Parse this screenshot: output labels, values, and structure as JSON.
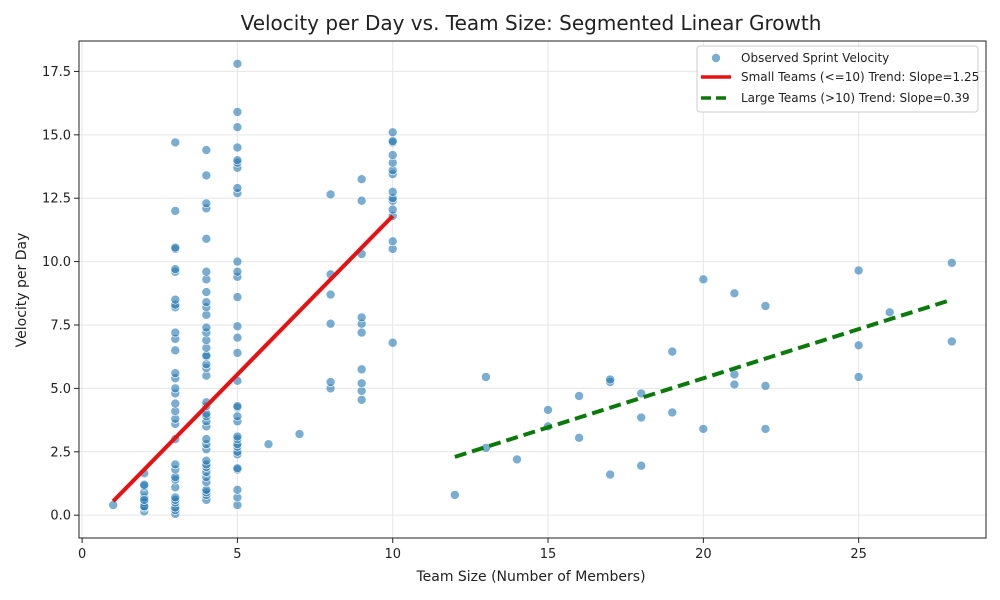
{
  "chart_data": {
    "type": "scatter",
    "title": "Velocity per Day vs. Team Size: Segmented Linear Growth",
    "xlabel": "Team Size (Number of Members)",
    "ylabel": "Velocity per Day",
    "xlim": [
      -0.1,
      29.1
    ],
    "ylim": [
      -0.9,
      18.7
    ],
    "xticks": [
      0,
      5,
      10,
      15,
      20,
      25
    ],
    "yticks": [
      0.0,
      2.5,
      5.0,
      7.5,
      10.0,
      12.5,
      15.0,
      17.5
    ],
    "xtick_labels": [
      "0",
      "5",
      "10",
      "15",
      "20",
      "25"
    ],
    "ytick_labels": [
      "0.0",
      "2.5",
      "5.0",
      "7.5",
      "10.0",
      "12.5",
      "15.0",
      "17.5"
    ],
    "grid": true,
    "legend_position": "top-right",
    "colors": {
      "points": "#1f77b4",
      "small_trend": "#e81010",
      "large_trend": "#0a7a0a"
    },
    "series": [
      {
        "name": "Observed Sprint Velocity",
        "kind": "scatter",
        "points": [
          [
            1,
            0.4
          ],
          [
            2,
            0.15
          ],
          [
            2,
            0.3
          ],
          [
            2,
            0.5
          ],
          [
            2,
            0.7
          ],
          [
            2,
            0.9
          ],
          [
            2,
            1.15
          ],
          [
            2,
            1.2
          ],
          [
            2,
            1.65
          ],
          [
            2,
            0.35
          ],
          [
            2,
            0.6
          ],
          [
            3,
            0.05
          ],
          [
            3,
            0.2
          ],
          [
            3,
            0.3
          ],
          [
            3,
            0.5
          ],
          [
            3,
            0.6
          ],
          [
            3,
            0.7
          ],
          [
            3,
            1.1
          ],
          [
            3,
            1.4
          ],
          [
            3,
            1.5
          ],
          [
            3,
            1.8
          ],
          [
            3,
            2.0
          ],
          [
            3,
            3.0
          ],
          [
            3,
            3.6
          ],
          [
            3,
            3.8
          ],
          [
            3,
            4.1
          ],
          [
            3,
            4.4
          ],
          [
            3,
            4.8
          ],
          [
            3,
            5.0
          ],
          [
            3,
            5.4
          ],
          [
            3,
            5.6
          ],
          [
            3,
            6.5
          ],
          [
            3,
            6.95
          ],
          [
            3,
            7.2
          ],
          [
            3,
            8.2
          ],
          [
            3,
            8.3
          ],
          [
            3,
            8.5
          ],
          [
            3,
            9.6
          ],
          [
            3,
            9.7
          ],
          [
            3,
            10.5
          ],
          [
            3,
            10.55
          ],
          [
            3,
            12.0
          ],
          [
            3,
            14.7
          ],
          [
            4,
            0.6
          ],
          [
            4,
            0.8
          ],
          [
            4,
            0.9
          ],
          [
            4,
            1.0
          ],
          [
            4,
            1.3
          ],
          [
            4,
            1.5
          ],
          [
            4,
            1.7
          ],
          [
            4,
            1.9
          ],
          [
            4,
            2.0
          ],
          [
            4,
            2.15
          ],
          [
            4,
            2.6
          ],
          [
            4,
            2.8
          ],
          [
            4,
            3.0
          ],
          [
            4,
            3.5
          ],
          [
            4,
            3.7
          ],
          [
            4,
            3.9
          ],
          [
            4,
            4.0
          ],
          [
            4,
            4.3
          ],
          [
            4,
            4.45
          ],
          [
            4,
            5.5
          ],
          [
            4,
            5.8
          ],
          [
            4,
            5.95
          ],
          [
            4,
            6.25
          ],
          [
            4,
            6.3
          ],
          [
            4,
            6.6
          ],
          [
            4,
            6.9
          ],
          [
            4,
            7.2
          ],
          [
            4,
            7.4
          ],
          [
            4,
            7.9
          ],
          [
            4,
            8.2
          ],
          [
            4,
            8.4
          ],
          [
            4,
            8.8
          ],
          [
            4,
            9.3
          ],
          [
            4,
            9.6
          ],
          [
            4,
            10.9
          ],
          [
            4,
            12.1
          ],
          [
            4,
            12.3
          ],
          [
            4,
            13.4
          ],
          [
            4,
            14.4
          ],
          [
            5,
            0.4
          ],
          [
            5,
            0.7
          ],
          [
            5,
            1.0
          ],
          [
            5,
            1.8
          ],
          [
            5,
            1.85
          ],
          [
            5,
            2.4
          ],
          [
            5,
            2.5
          ],
          [
            5,
            2.7
          ],
          [
            5,
            2.8
          ],
          [
            5,
            3.0
          ],
          [
            5,
            3.1
          ],
          [
            5,
            3.7
          ],
          [
            5,
            3.9
          ],
          [
            5,
            4.25
          ],
          [
            5,
            4.3
          ],
          [
            5,
            5.3
          ],
          [
            5,
            6.4
          ],
          [
            5,
            7.0
          ],
          [
            5,
            7.45
          ],
          [
            5,
            8.6
          ],
          [
            5,
            9.4
          ],
          [
            5,
            9.6
          ],
          [
            5,
            10.0
          ],
          [
            5,
            12.7
          ],
          [
            5,
            12.9
          ],
          [
            5,
            13.7
          ],
          [
            5,
            13.9
          ],
          [
            5,
            14.0
          ],
          [
            5,
            14.5
          ],
          [
            5,
            15.3
          ],
          [
            5,
            15.9
          ],
          [
            5,
            17.8
          ],
          [
            6,
            2.8
          ],
          [
            7,
            3.2
          ],
          [
            8,
            5.0
          ],
          [
            8,
            5.25
          ],
          [
            8,
            7.55
          ],
          [
            8,
            8.7
          ],
          [
            8,
            9.5
          ],
          [
            8,
            12.65
          ],
          [
            9,
            4.55
          ],
          [
            9,
            4.9
          ],
          [
            9,
            5.2
          ],
          [
            9,
            5.75
          ],
          [
            9,
            7.2
          ],
          [
            9,
            7.55
          ],
          [
            9,
            7.8
          ],
          [
            9,
            10.3
          ],
          [
            9,
            12.4
          ],
          [
            9,
            13.25
          ],
          [
            10,
            6.8
          ],
          [
            10,
            10.5
          ],
          [
            10,
            10.8
          ],
          [
            10,
            11.8
          ],
          [
            10,
            12.05
          ],
          [
            10,
            12.4
          ],
          [
            10,
            12.5
          ],
          [
            10,
            12.75
          ],
          [
            10,
            13.45
          ],
          [
            10,
            13.6
          ],
          [
            10,
            13.9
          ],
          [
            10,
            14.2
          ],
          [
            10,
            14.7
          ],
          [
            10,
            14.75
          ],
          [
            10,
            15.1
          ],
          [
            12,
            0.8
          ],
          [
            13,
            2.65
          ],
          [
            13,
            5.45
          ],
          [
            14,
            2.2
          ],
          [
            15,
            3.5
          ],
          [
            15,
            4.15
          ],
          [
            16,
            3.05
          ],
          [
            16,
            4.7
          ],
          [
            17,
            1.6
          ],
          [
            17,
            5.25
          ],
          [
            17,
            5.35
          ],
          [
            18,
            1.95
          ],
          [
            18,
            3.85
          ],
          [
            18,
            4.8
          ],
          [
            19,
            4.05
          ],
          [
            19,
            6.45
          ],
          [
            20,
            3.4
          ],
          [
            20,
            9.3
          ],
          [
            21,
            5.15
          ],
          [
            21,
            5.55
          ],
          [
            21,
            8.75
          ],
          [
            22,
            3.4
          ],
          [
            22,
            5.1
          ],
          [
            22,
            8.25
          ],
          [
            25,
            5.45
          ],
          [
            25,
            6.7
          ],
          [
            25,
            9.65
          ],
          [
            26,
            8.0
          ],
          [
            28,
            6.85
          ],
          [
            28,
            9.95
          ]
        ]
      },
      {
        "name": "Small Teams (<=10) Trend: Slope=1.25",
        "kind": "line",
        "style": "solid",
        "points": [
          [
            1,
            0.55
          ],
          [
            10,
            11.8
          ]
        ]
      },
      {
        "name": "Large Teams (>10) Trend: Slope=0.39",
        "kind": "line",
        "style": "dashed",
        "points": [
          [
            12,
            2.3
          ],
          [
            28,
            8.5
          ]
        ]
      }
    ]
  }
}
